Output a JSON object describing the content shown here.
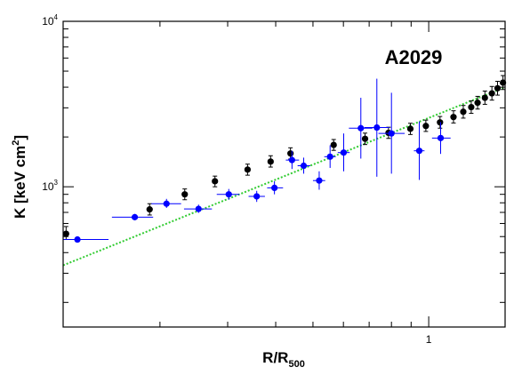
{
  "chart_data": {
    "type": "scatter",
    "title": "",
    "annotation": "A2029",
    "xlabel": "R/R",
    "xlabel_sub": "500",
    "ylabel": "K [keV cm",
    "ylabel_sup": "2",
    "ylabel_tail": "]",
    "xscale": "log",
    "yscale": "log",
    "xlim": [
      0.112,
      1.58
    ],
    "ylim": [
      142,
      10000
    ],
    "x_tick_labels": [
      {
        "value": 1,
        "text": "1"
      }
    ],
    "y_tick_labels": [
      {
        "value": 1000,
        "base": "10",
        "exp": "3"
      },
      {
        "value": 10000,
        "base": "10",
        "exp": "4"
      }
    ],
    "grid": false,
    "series": [
      {
        "color": "#000000",
        "marker": "circle",
        "points": [
          {
            "x": 0.114,
            "y": 520,
            "xerr": 0.002,
            "ylo": 480,
            "yhi": 575
          },
          {
            "x": 0.188,
            "y": 730,
            "xerr": 0.003,
            "ylo": 675,
            "yhi": 790
          },
          {
            "x": 0.232,
            "y": 900,
            "xerr": 0.003,
            "ylo": 835,
            "yhi": 970
          },
          {
            "x": 0.278,
            "y": 1080,
            "xerr": 0.003,
            "ylo": 1000,
            "yhi": 1160
          },
          {
            "x": 0.338,
            "y": 1270,
            "xerr": 0.003,
            "ylo": 1175,
            "yhi": 1370
          },
          {
            "x": 0.388,
            "y": 1420,
            "xerr": 0.003,
            "ylo": 1315,
            "yhi": 1540
          },
          {
            "x": 0.437,
            "y": 1590,
            "xerr": 0.003,
            "ylo": 1470,
            "yhi": 1720
          },
          {
            "x": 0.566,
            "y": 1790,
            "xerr": 0.003,
            "ylo": 1660,
            "yhi": 1930
          },
          {
            "x": 0.683,
            "y": 1950,
            "xerr": 0.004,
            "ylo": 1800,
            "yhi": 2110
          },
          {
            "x": 0.786,
            "y": 2120,
            "xerr": 0.004,
            "ylo": 1960,
            "yhi": 2290
          },
          {
            "x": 0.896,
            "y": 2240,
            "xerr": 0.004,
            "ylo": 2070,
            "yhi": 2420
          },
          {
            "x": 0.983,
            "y": 2330,
            "xerr": 0.004,
            "ylo": 2160,
            "yhi": 2530
          },
          {
            "x": 1.07,
            "y": 2450,
            "xerr": 0.005,
            "ylo": 2260,
            "yhi": 2660
          },
          {
            "x": 1.16,
            "y": 2640,
            "xerr": 0.005,
            "ylo": 2430,
            "yhi": 2880
          },
          {
            "x": 1.23,
            "y": 2840,
            "xerr": 0.005,
            "ylo": 2600,
            "yhi": 3100
          },
          {
            "x": 1.29,
            "y": 3030,
            "xerr": 0.005,
            "ylo": 2780,
            "yhi": 3310
          },
          {
            "x": 1.34,
            "y": 3220,
            "xerr": 0.005,
            "ylo": 2950,
            "yhi": 3520
          },
          {
            "x": 1.4,
            "y": 3450,
            "xerr": 0.006,
            "ylo": 3150,
            "yhi": 3790
          },
          {
            "x": 1.46,
            "y": 3670,
            "xerr": 0.006,
            "ylo": 3340,
            "yhi": 4040
          },
          {
            "x": 1.51,
            "y": 3940,
            "xerr": 0.006,
            "ylo": 3580,
            "yhi": 4340
          },
          {
            "x": 1.56,
            "y": 4260,
            "xerr": 0.006,
            "ylo": 3870,
            "yhi": 4700
          }
        ]
      },
      {
        "color": "#0000ff",
        "marker": "circle",
        "points": [
          {
            "x": 0.122,
            "y": 480,
            "xlo": 0.112,
            "xhi": 0.147,
            "ylo": 470,
            "yhi": 490
          },
          {
            "x": 0.172,
            "y": 655,
            "xlo": 0.15,
            "xhi": 0.192,
            "ylo": 630,
            "yhi": 685
          },
          {
            "x": 0.208,
            "y": 790,
            "xlo": 0.19,
            "xhi": 0.227,
            "ylo": 745,
            "yhi": 845
          },
          {
            "x": 0.252,
            "y": 735,
            "xlo": 0.231,
            "xhi": 0.273,
            "ylo": 695,
            "yhi": 780
          },
          {
            "x": 0.302,
            "y": 900,
            "xlo": 0.281,
            "xhi": 0.322,
            "ylo": 835,
            "yhi": 970
          },
          {
            "x": 0.357,
            "y": 875,
            "xlo": 0.34,
            "xhi": 0.375,
            "ylo": 810,
            "yhi": 945
          },
          {
            "x": 0.397,
            "y": 985,
            "xlo": 0.38,
            "xhi": 0.418,
            "ylo": 900,
            "yhi": 1080
          },
          {
            "x": 0.441,
            "y": 1450,
            "xlo": 0.425,
            "xhi": 0.46,
            "ylo": 1280,
            "yhi": 1650
          },
          {
            "x": 0.473,
            "y": 1340,
            "xlo": 0.456,
            "xhi": 0.492,
            "ylo": 1200,
            "yhi": 1500
          },
          {
            "x": 0.519,
            "y": 1090,
            "xlo": 0.5,
            "xhi": 0.538,
            "ylo": 960,
            "yhi": 1240
          },
          {
            "x": 0.554,
            "y": 1520,
            "xlo": 0.535,
            "xhi": 0.573,
            "ylo": 1300,
            "yhi": 1780
          },
          {
            "x": 0.601,
            "y": 1610,
            "xlo": 0.58,
            "xhi": 0.623,
            "ylo": 1240,
            "yhi": 2100
          },
          {
            "x": 0.666,
            "y": 2260,
            "xlo": 0.62,
            "xhi": 0.714,
            "ylo": 1480,
            "yhi": 3450
          },
          {
            "x": 0.733,
            "y": 2280,
            "xlo": 0.68,
            "xhi": 0.79,
            "ylo": 1150,
            "yhi": 4500
          },
          {
            "x": 0.8,
            "y": 2100,
            "xlo": 0.74,
            "xhi": 0.866,
            "ylo": 1200,
            "yhi": 3700
          },
          {
            "x": 0.945,
            "y": 1650,
            "xlo": 0.915,
            "xhi": 0.975,
            "ylo": 1100,
            "yhi": 2480
          },
          {
            "x": 1.074,
            "y": 1970,
            "xlo": 1.02,
            "xhi": 1.14,
            "ylo": 1580,
            "yhi": 2460
          }
        ]
      }
    ],
    "fit": {
      "color": "#33cc33",
      "style": "dotted",
      "points": [
        {
          "x": 0.112,
          "y": 335
        },
        {
          "x": 1.58,
          "y": 4000
        }
      ]
    }
  }
}
